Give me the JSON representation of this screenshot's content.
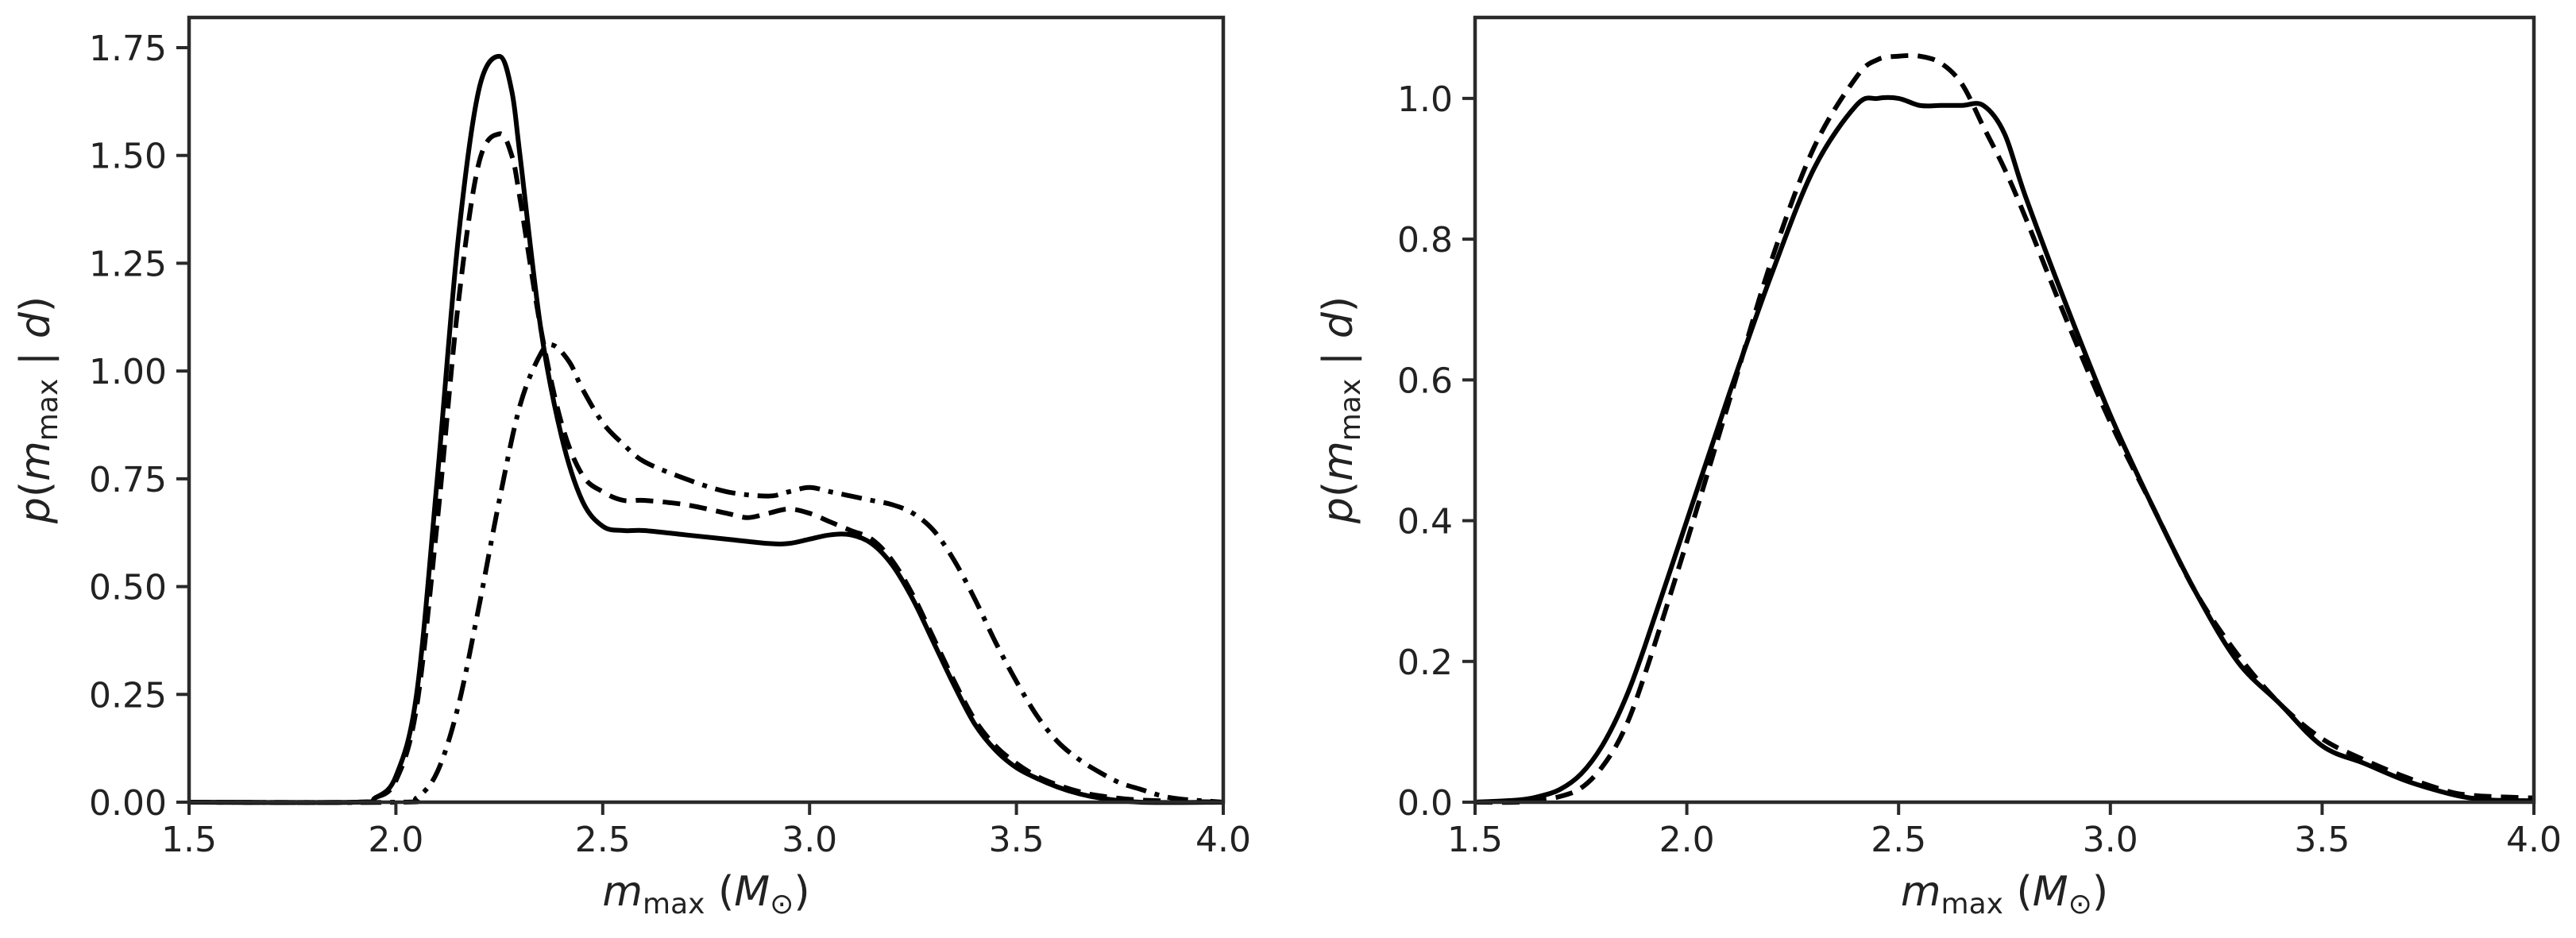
{
  "chart_data": [
    {
      "type": "line",
      "panel": "left",
      "xlabel": {
        "main": "m",
        "sub": "max",
        "units_pre": " (",
        "units_main": "M",
        "units_sub": "⊙",
        "units_post": ")"
      },
      "ylabel": {
        "pre": "p(",
        "main": "m",
        "sub": "max",
        "post": " | d)"
      },
      "xlim": [
        1.5,
        4.0
      ],
      "ylim": [
        0.0,
        1.82
      ],
      "xticks": [
        1.5,
        2.0,
        2.5,
        3.0,
        3.5,
        4.0
      ],
      "xtick_labels": [
        "1.5",
        "2.0",
        "2.5",
        "3.0",
        "3.5",
        "4.0"
      ],
      "yticks": [
        0.0,
        0.25,
        0.5,
        0.75,
        1.0,
        1.25,
        1.5,
        1.75
      ],
      "ytick_labels": [
        "0.00",
        "0.25",
        "0.50",
        "0.75",
        "1.00",
        "1.25",
        "1.50",
        "1.75"
      ],
      "grid": false,
      "series": [
        {
          "style": "solid",
          "x": [
            1.5,
            1.9,
            1.95,
            2.0,
            2.05,
            2.1,
            2.15,
            2.2,
            2.25,
            2.28,
            2.3,
            2.35,
            2.4,
            2.45,
            2.5,
            2.55,
            2.6,
            2.7,
            2.8,
            2.9,
            2.95,
            3.0,
            3.05,
            3.1,
            3.15,
            3.2,
            3.25,
            3.3,
            3.35,
            3.4,
            3.45,
            3.5,
            3.55,
            3.6,
            3.65,
            3.7,
            3.8,
            4.0
          ],
          "y": [
            0.0,
            0.0,
            0.01,
            0.06,
            0.25,
            0.75,
            1.3,
            1.65,
            1.73,
            1.65,
            1.5,
            1.1,
            0.85,
            0.7,
            0.64,
            0.63,
            0.63,
            0.62,
            0.61,
            0.6,
            0.6,
            0.61,
            0.62,
            0.62,
            0.6,
            0.55,
            0.47,
            0.37,
            0.27,
            0.18,
            0.12,
            0.08,
            0.055,
            0.035,
            0.02,
            0.01,
            0.0,
            0.0
          ]
        },
        {
          "style": "dashed",
          "x": [
            1.5,
            1.9,
            1.95,
            2.0,
            2.05,
            2.1,
            2.15,
            2.2,
            2.25,
            2.28,
            2.3,
            2.35,
            2.4,
            2.45,
            2.5,
            2.55,
            2.6,
            2.7,
            2.8,
            2.85,
            2.9,
            2.95,
            3.0,
            3.05,
            3.1,
            3.15,
            3.2,
            3.25,
            3.3,
            3.35,
            3.4,
            3.45,
            3.5,
            3.55,
            3.6,
            3.65,
            3.7,
            3.8,
            4.0
          ],
          "y": [
            0.0,
            0.0,
            0.01,
            0.05,
            0.22,
            0.65,
            1.15,
            1.48,
            1.55,
            1.5,
            1.4,
            1.1,
            0.88,
            0.76,
            0.72,
            0.7,
            0.7,
            0.69,
            0.67,
            0.66,
            0.67,
            0.68,
            0.67,
            0.65,
            0.63,
            0.61,
            0.56,
            0.48,
            0.38,
            0.28,
            0.19,
            0.13,
            0.09,
            0.06,
            0.04,
            0.025,
            0.015,
            0.005,
            0.0
          ]
        },
        {
          "style": "dashdot",
          "x": [
            1.5,
            2.0,
            2.05,
            2.1,
            2.15,
            2.2,
            2.25,
            2.3,
            2.35,
            2.38,
            2.42,
            2.45,
            2.5,
            2.55,
            2.6,
            2.7,
            2.8,
            2.9,
            2.95,
            3.0,
            3.05,
            3.1,
            3.15,
            3.2,
            3.25,
            3.3,
            3.35,
            3.4,
            3.45,
            3.5,
            3.55,
            3.6,
            3.65,
            3.7,
            3.75,
            3.8,
            3.85,
            3.9,
            4.0
          ],
          "y": [
            0.0,
            0.0,
            0.01,
            0.07,
            0.22,
            0.45,
            0.7,
            0.92,
            1.04,
            1.06,
            1.02,
            0.96,
            0.88,
            0.83,
            0.79,
            0.75,
            0.72,
            0.71,
            0.72,
            0.73,
            0.72,
            0.71,
            0.7,
            0.69,
            0.67,
            0.63,
            0.56,
            0.47,
            0.37,
            0.28,
            0.2,
            0.14,
            0.1,
            0.07,
            0.045,
            0.03,
            0.015,
            0.007,
            0.0
          ]
        }
      ]
    },
    {
      "type": "line",
      "panel": "right",
      "xlabel": {
        "main": "m",
        "sub": "max",
        "units_pre": " (",
        "units_main": "M",
        "units_sub": "⊙",
        "units_post": ")"
      },
      "ylabel": {
        "pre": "p(",
        "main": "m",
        "sub": "max",
        "post": " | d)"
      },
      "xlim": [
        1.5,
        4.0
      ],
      "ylim": [
        0.0,
        1.115
      ],
      "xticks": [
        1.5,
        2.0,
        2.5,
        3.0,
        3.5,
        4.0
      ],
      "xtick_labels": [
        "1.5",
        "2.0",
        "2.5",
        "3.0",
        "3.5",
        "4.0"
      ],
      "yticks": [
        0.0,
        0.2,
        0.4,
        0.6,
        0.8,
        1.0
      ],
      "ytick_labels": [
        "0.0",
        "0.2",
        "0.4",
        "0.6",
        "0.8",
        "1.0"
      ],
      "grid": false,
      "series": [
        {
          "style": "solid",
          "x": [
            1.5,
            1.6,
            1.65,
            1.7,
            1.75,
            1.8,
            1.85,
            1.9,
            2.0,
            2.1,
            2.2,
            2.3,
            2.4,
            2.45,
            2.5,
            2.55,
            2.6,
            2.65,
            2.7,
            2.75,
            2.8,
            2.9,
            3.0,
            3.1,
            3.2,
            3.3,
            3.4,
            3.5,
            3.6,
            3.7,
            3.8,
            3.85,
            3.9,
            4.0
          ],
          "y": [
            0.0,
            0.003,
            0.008,
            0.018,
            0.04,
            0.08,
            0.14,
            0.22,
            0.4,
            0.58,
            0.75,
            0.9,
            0.99,
            1.0,
            1.0,
            0.99,
            0.99,
            0.99,
            0.99,
            0.95,
            0.86,
            0.7,
            0.55,
            0.42,
            0.3,
            0.2,
            0.14,
            0.08,
            0.055,
            0.03,
            0.012,
            0.006,
            0.003,
            0.002
          ]
        },
        {
          "style": "dashed",
          "x": [
            1.5,
            1.6,
            1.65,
            1.7,
            1.75,
            1.8,
            1.85,
            1.9,
            2.0,
            2.1,
            2.2,
            2.3,
            2.4,
            2.45,
            2.5,
            2.55,
            2.6,
            2.65,
            2.7,
            2.75,
            2.8,
            2.9,
            3.0,
            3.1,
            3.2,
            3.3,
            3.4,
            3.5,
            3.6,
            3.7,
            3.8,
            3.85,
            3.9,
            4.0
          ],
          "y": [
            0.0,
            0.0,
            0.003,
            0.008,
            0.02,
            0.05,
            0.1,
            0.18,
            0.37,
            0.57,
            0.77,
            0.93,
            1.03,
            1.055,
            1.06,
            1.06,
            1.05,
            1.02,
            0.96,
            0.9,
            0.83,
            0.68,
            0.54,
            0.42,
            0.3,
            0.21,
            0.14,
            0.09,
            0.06,
            0.035,
            0.015,
            0.01,
            0.008,
            0.006
          ]
        }
      ]
    }
  ]
}
